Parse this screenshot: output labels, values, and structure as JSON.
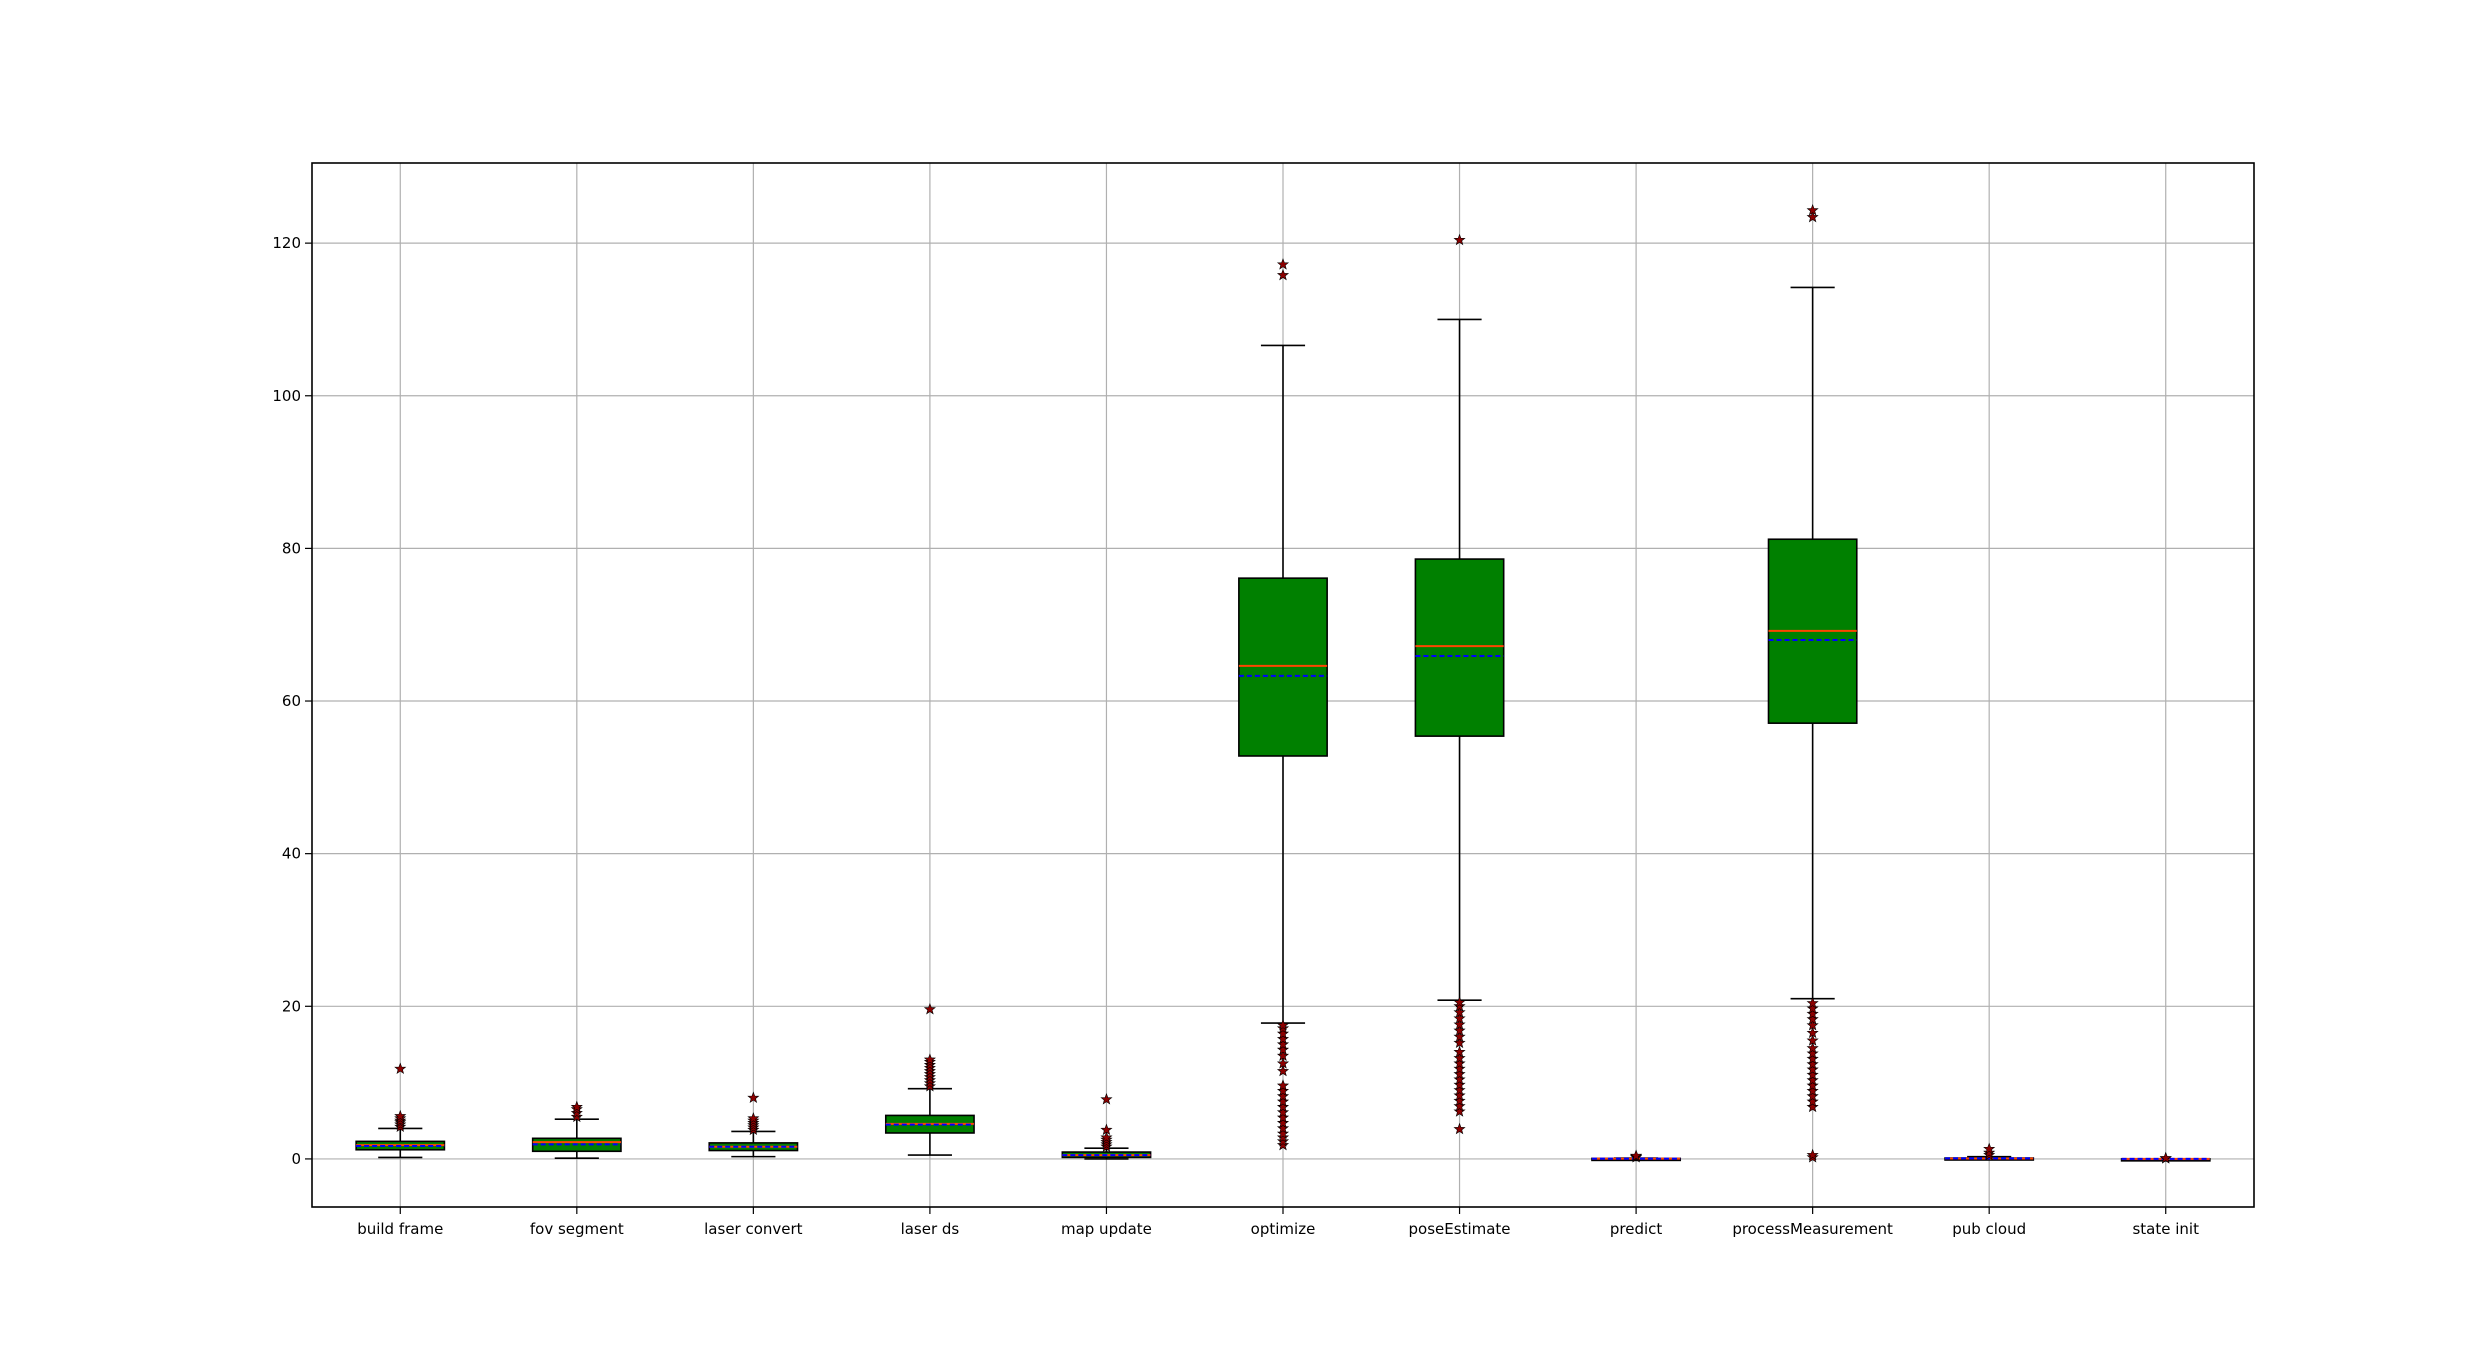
{
  "chart_data": {
    "type": "box",
    "title": "",
    "xlabel": "",
    "ylabel": "",
    "ylim": [
      -6.3,
      130.5
    ],
    "yticks": [
      0,
      20,
      40,
      60,
      80,
      100,
      120
    ],
    "ytick_labels": [
      "0",
      "20",
      "40",
      "60",
      "80",
      "100",
      "120"
    ],
    "grid": true,
    "colors": {
      "box_fill": "#008000",
      "box_fill_small": "#8a2be2",
      "median": "#ff4500",
      "mean_line": "#0000ff",
      "outlier_fill": "#8b0000",
      "grid": "#b0b0b0"
    },
    "categories": [
      "build frame",
      "fov segment",
      "laser convert",
      "laser ds",
      "map update",
      "optimize",
      "poseEstimate",
      "predict",
      "processMeasurement",
      "pub cloud",
      "state init"
    ],
    "boxes": [
      {
        "label": "build frame",
        "whislo": 0.2,
        "q1": 1.2,
        "med": 1.8,
        "mean": 1.7,
        "q3": 2.3,
        "whishi": 4.0,
        "fliers": [
          4.2,
          4.5,
          4.8,
          5.0,
          5.3,
          5.6,
          11.8
        ]
      },
      {
        "label": "fov segment",
        "whislo": 0.1,
        "q1": 1.0,
        "med": 2.2,
        "mean": 1.9,
        "q3": 2.7,
        "whishi": 5.2,
        "fliers": [
          5.5,
          6.0,
          6.5,
          6.8
        ]
      },
      {
        "label": "laser convert",
        "whislo": 0.3,
        "q1": 1.1,
        "med": 1.6,
        "mean": 1.6,
        "q3": 2.1,
        "whishi": 3.6,
        "fliers": [
          3.8,
          4.1,
          4.4,
          4.7,
          5.0,
          5.3,
          8.0
        ]
      },
      {
        "label": "laser ds",
        "whislo": 0.5,
        "q1": 3.4,
        "med": 4.6,
        "mean": 4.5,
        "q3": 5.7,
        "whishi": 9.2,
        "fliers": [
          9.5,
          9.9,
          10.3,
          10.7,
          11.1,
          11.5,
          11.9,
          12.3,
          12.7,
          13.0,
          19.6
        ]
      },
      {
        "label": "map update",
        "whislo": 0.0,
        "q1": 0.2,
        "med": 0.5,
        "mean": 0.5,
        "q3": 0.9,
        "whishi": 1.4,
        "fliers": [
          1.6,
          1.9,
          2.2,
          2.5,
          2.8,
          3.8,
          7.8
        ]
      },
      {
        "label": "optimize",
        "whislo": 17.8,
        "q1": 52.8,
        "med": 64.6,
        "mean": 63.3,
        "q3": 76.1,
        "whishi": 106.6,
        "fliers": [
          1.8,
          2.3,
          2.8,
          3.3,
          4.0,
          4.7,
          5.4,
          6.1,
          6.8,
          7.5,
          8.2,
          8.9,
          9.6,
          11.5,
          12.5,
          13.5,
          14.3,
          15.0,
          15.7,
          16.4,
          17.1,
          17.5,
          115.8,
          117.2
        ]
      },
      {
        "label": "poseEstimate",
        "whislo": 20.8,
        "q1": 55.4,
        "med": 67.2,
        "mean": 65.9,
        "q3": 78.6,
        "whishi": 110.0,
        "fliers": [
          3.9,
          6.2,
          6.9,
          7.6,
          8.3,
          9.0,
          9.7,
          10.4,
          11.1,
          11.8,
          12.5,
          13.2,
          14.0,
          15.2,
          16.0,
          16.8,
          17.6,
          18.4,
          19.2,
          20.0,
          20.5,
          120.4
        ]
      },
      {
        "label": "predict",
        "whislo": 0.0,
        "q1": 0.02,
        "med": 0.04,
        "mean": 0.04,
        "q3": 0.07,
        "whishi": 0.12,
        "fliers": [
          0.2,
          0.3,
          0.4
        ]
      },
      {
        "label": "processMeasurement",
        "whislo": 21.0,
        "q1": 57.1,
        "med": 69.2,
        "mean": 68.0,
        "q3": 81.2,
        "whishi": 114.2,
        "fliers": [
          0.2,
          0.5,
          6.8,
          7.5,
          8.2,
          8.9,
          9.6,
          10.3,
          11.0,
          11.7,
          12.4,
          13.1,
          13.8,
          14.5,
          15.5,
          16.5,
          17.5,
          18.3,
          19.0,
          19.7,
          20.4,
          123.4,
          124.3
        ]
      },
      {
        "label": "pub cloud",
        "whislo": 0.0,
        "q1": 0.03,
        "med": 0.06,
        "mean": 0.07,
        "q3": 0.12,
        "whishi": 0.3,
        "fliers": [
          0.5,
          0.8,
          1.3
        ]
      },
      {
        "label": "state init",
        "whislo": 0.0,
        "q1": 0.0,
        "med": 0.0,
        "mean": 0.0,
        "q3": 0.01,
        "whishi": 0.02,
        "fliers": [
          0.05,
          0.1
        ]
      }
    ]
  }
}
